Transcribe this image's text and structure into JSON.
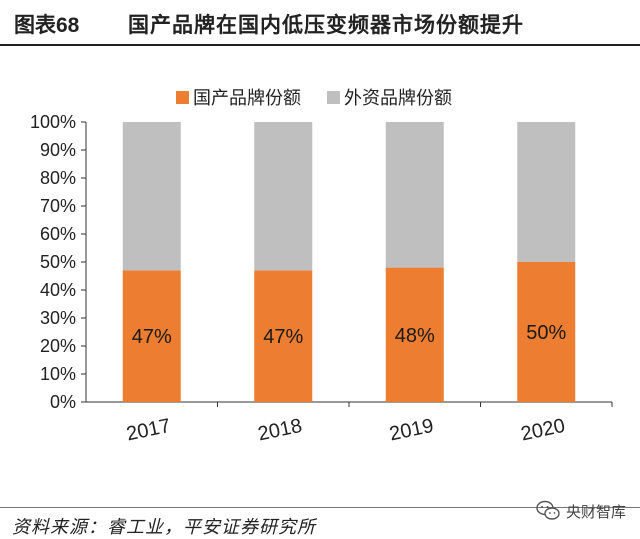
{
  "header": {
    "figure_label": "图表68",
    "title": "国产品牌在国内低压变频器市场份额提升"
  },
  "chart_data": {
    "type": "bar",
    "stacked": true,
    "categories": [
      "2017",
      "2018",
      "2019",
      "2020"
    ],
    "series": [
      {
        "name": "国产品牌份额",
        "values": [
          47,
          47,
          48,
          50
        ],
        "color": "#ED7D31"
      },
      {
        "name": "外资品牌份额",
        "values": [
          53,
          53,
          52,
          50
        ],
        "color": "#BFBFBF"
      }
    ],
    "data_labels": [
      "47%",
      "47%",
      "48%",
      "50%"
    ],
    "y_ticks": [
      "0%",
      "10%",
      "20%",
      "30%",
      "40%",
      "50%",
      "60%",
      "70%",
      "80%",
      "90%",
      "100%"
    ],
    "ylim": [
      0,
      100
    ],
    "legend_position": "top-center",
    "grid": false
  },
  "footer": {
    "source": "资料来源：睿工业，平安证券研究所",
    "watermark": "央财智库"
  }
}
